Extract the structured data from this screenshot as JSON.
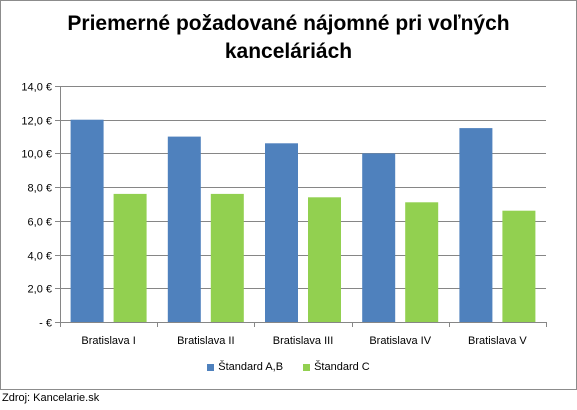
{
  "chart_data": {
    "type": "bar",
    "title": "Priemerné požadované nájomné pri voľných kanceláriách",
    "title_lines": [
      "Priemerné požadované nájomné pri voľných",
      "kanceláriách"
    ],
    "categories": [
      "Bratislava I",
      "Bratislava II",
      "Bratislava III",
      "Bratislava IV",
      "Bratislava V"
    ],
    "series": [
      {
        "name": "Štandard A,B",
        "color": "#4f81bd",
        "values": [
          12.0,
          11.0,
          10.6,
          10.0,
          11.5
        ]
      },
      {
        "name": "Štandard C",
        "color": "#92d050",
        "values": [
          7.6,
          7.6,
          7.4,
          7.1,
          6.6
        ]
      }
    ],
    "ylim": [
      0,
      14
    ],
    "yticks": [
      0,
      2,
      4,
      6,
      8,
      10,
      12,
      14
    ],
    "ytick_labels": [
      "-   €",
      "2,0 €",
      "4,0 €",
      "6,0 €",
      "8,0 €",
      "10,0 €",
      "12,0 €",
      "14,0 €"
    ],
    "grid": true,
    "legend": "bottom",
    "xlabel": "",
    "ylabel": ""
  },
  "source": "Zdroj: Kancelarie.sk"
}
